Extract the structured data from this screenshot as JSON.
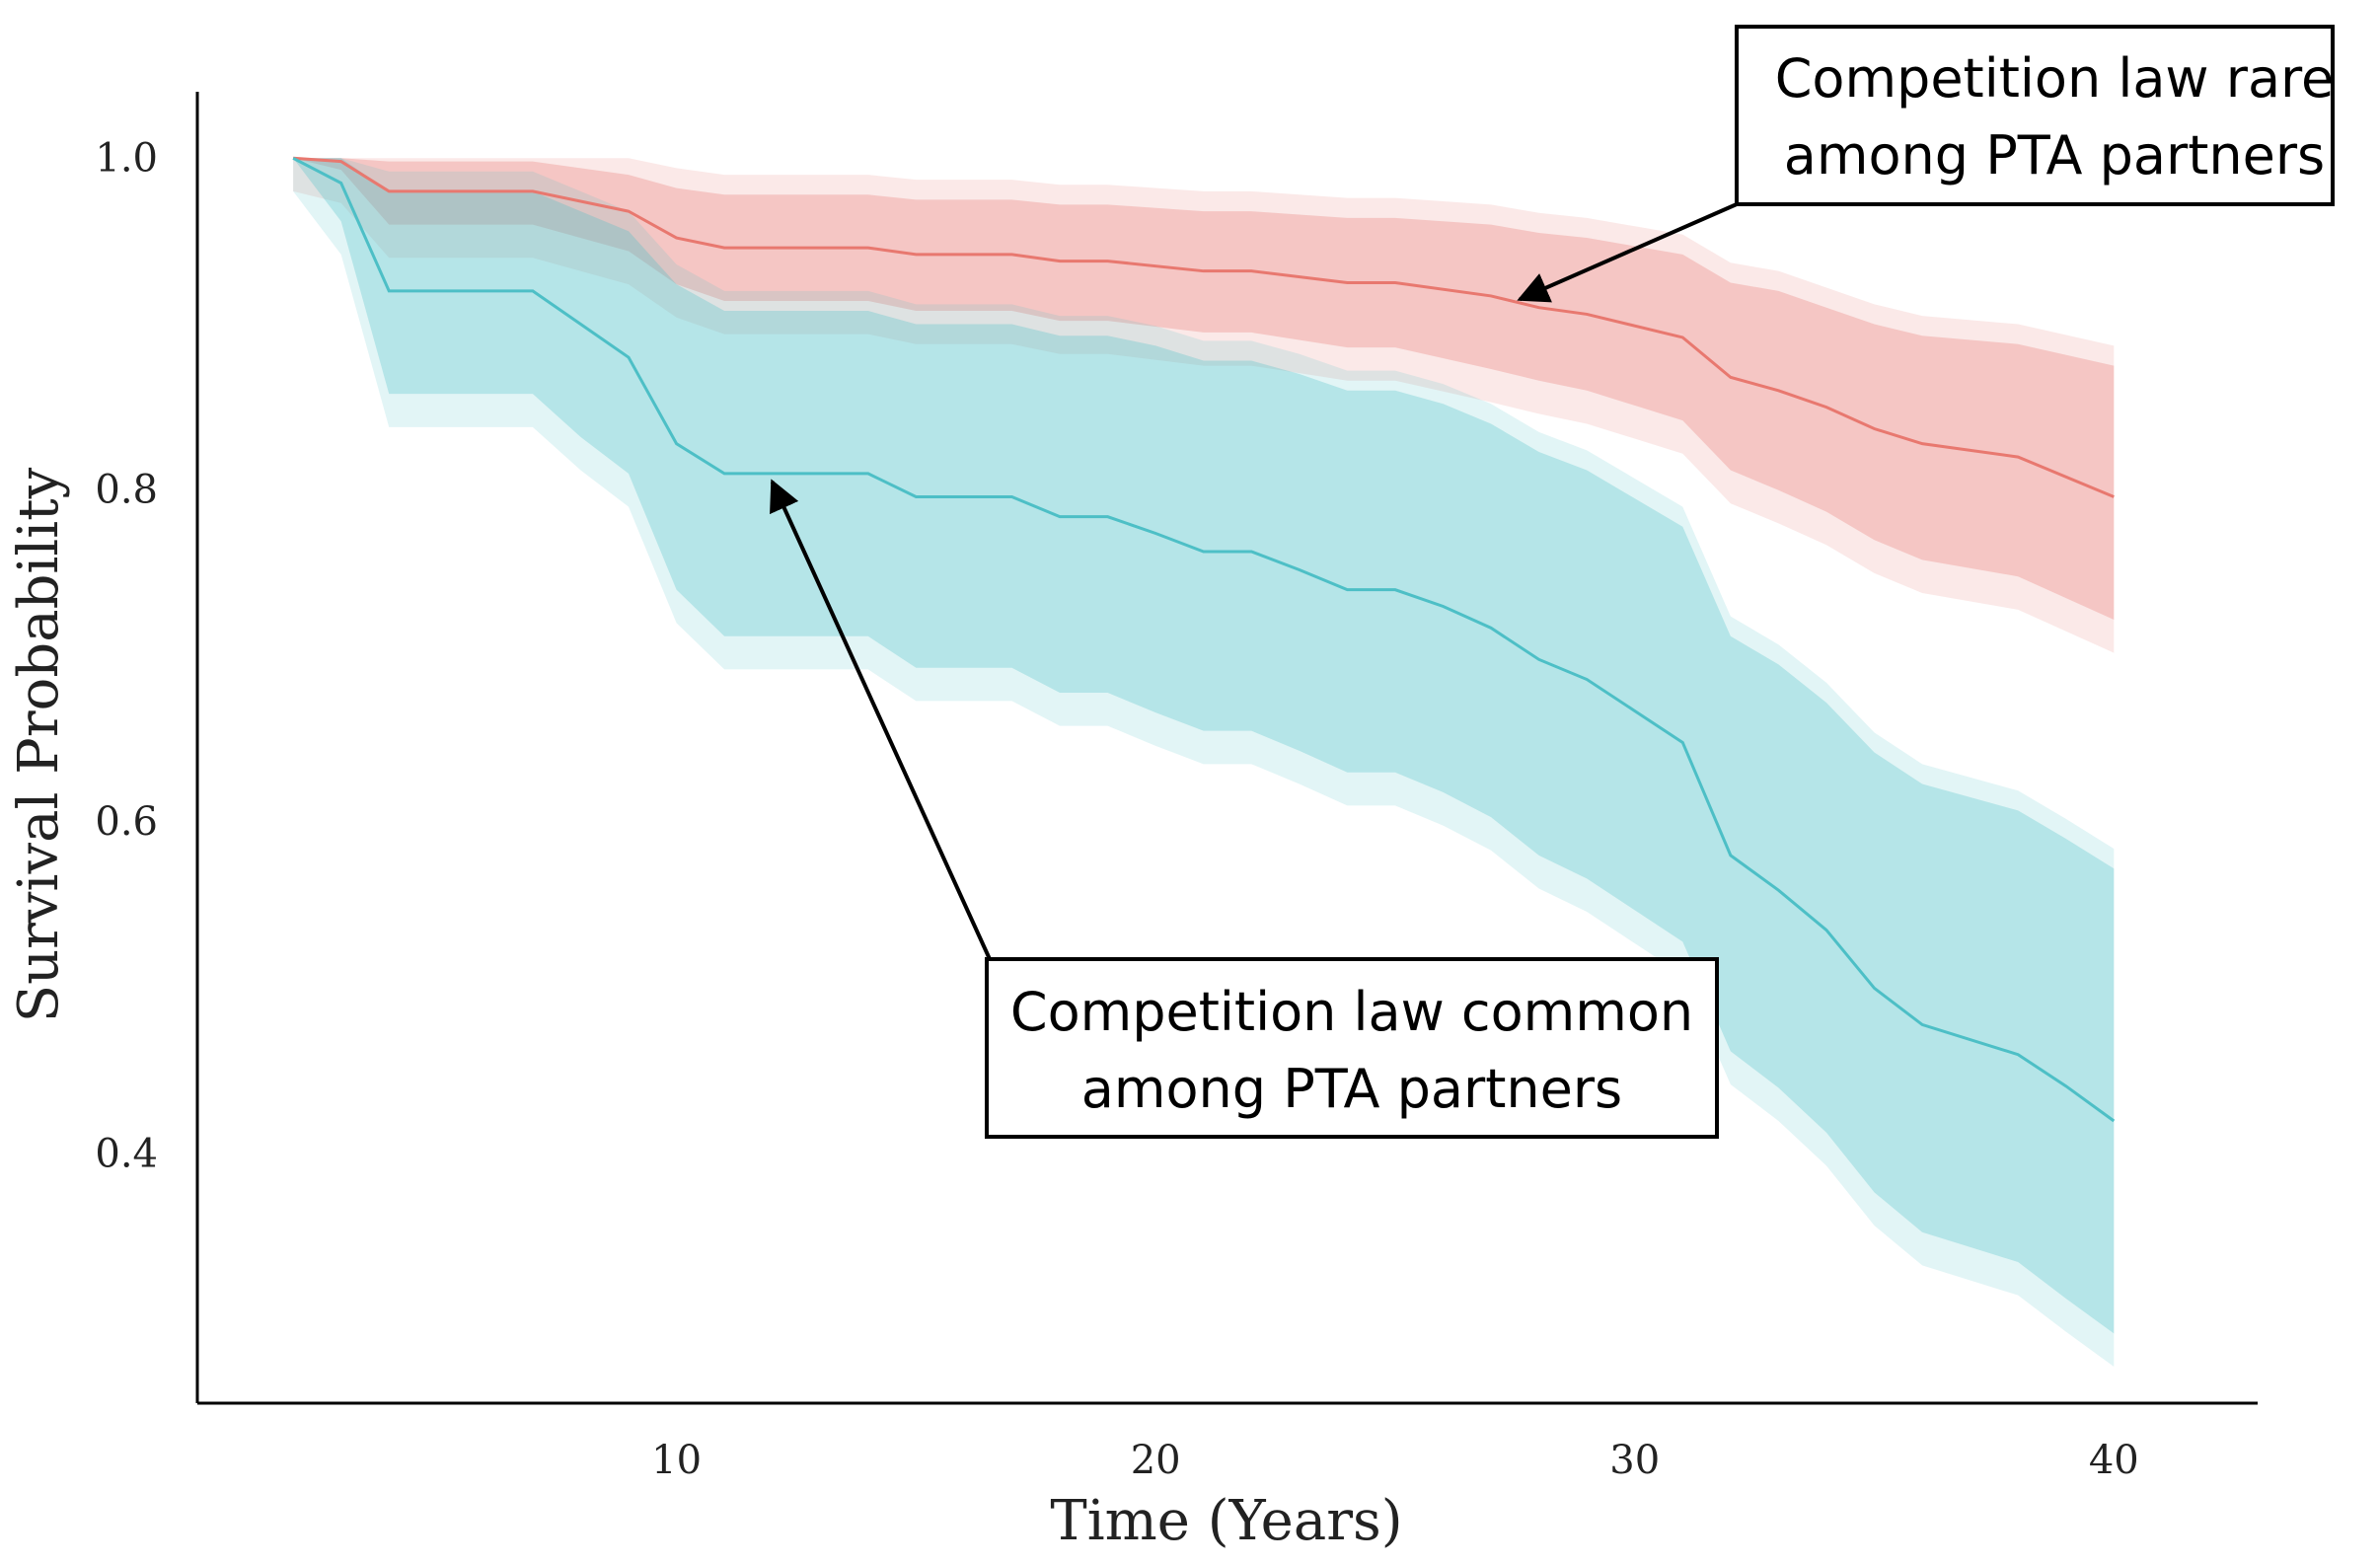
{
  "chart_data": {
    "type": "line",
    "xlabel": "Time (Years)",
    "ylabel": "Survival Probability",
    "xlim": [
      0,
      43
    ],
    "ylim": [
      0.25,
      1.04
    ],
    "xticks": [
      10,
      20,
      30,
      40
    ],
    "yticks": [
      0.4,
      0.6,
      0.8,
      1.0
    ],
    "xtick_labels": [
      "10",
      "20",
      "30",
      "40"
    ],
    "ytick_labels": [
      "0.4",
      "0.6",
      "0.8",
      "1.0"
    ],
    "grid": false,
    "colors": {
      "rare": "#E8786F",
      "common": "#4DBFC6"
    },
    "series": [
      {
        "key": "rare",
        "x": [
          2,
          3,
          4,
          7,
          9,
          10,
          11,
          14,
          15,
          17,
          18,
          19,
          21,
          22,
          24,
          25,
          27,
          28,
          29,
          31,
          32,
          33,
          34,
          35,
          36,
          38,
          40
        ],
        "y": [
          1.0,
          0.998,
          0.98,
          0.98,
          0.968,
          0.952,
          0.946,
          0.946,
          0.942,
          0.942,
          0.938,
          0.938,
          0.932,
          0.932,
          0.925,
          0.925,
          0.917,
          0.91,
          0.906,
          0.892,
          0.868,
          0.86,
          0.85,
          0.837,
          0.828,
          0.82,
          0.796
        ],
        "ci_low": [
          1.0,
          0.993,
          0.96,
          0.96,
          0.944,
          0.924,
          0.914,
          0.914,
          0.908,
          0.908,
          0.902,
          0.902,
          0.895,
          0.895,
          0.886,
          0.886,
          0.873,
          0.866,
          0.86,
          0.842,
          0.812,
          0.8,
          0.787,
          0.77,
          0.758,
          0.748,
          0.722
        ],
        "ci_high": [
          1.0,
          1.0,
          0.998,
          0.998,
          0.99,
          0.982,
          0.978,
          0.978,
          0.975,
          0.975,
          0.972,
          0.972,
          0.968,
          0.968,
          0.964,
          0.964,
          0.96,
          0.955,
          0.952,
          0.942,
          0.925,
          0.92,
          0.91,
          0.9,
          0.893,
          0.888,
          0.875
        ]
      },
      {
        "key": "common",
        "x": [
          2,
          3,
          4,
          7,
          8,
          9,
          10,
          11,
          14,
          15,
          17,
          18,
          19,
          20,
          21,
          22,
          23,
          24,
          25,
          26,
          27,
          28,
          29,
          30,
          31,
          32,
          33,
          34,
          35,
          36,
          38,
          39,
          40
        ],
        "y": [
          1.0,
          0.985,
          0.92,
          0.92,
          0.9,
          0.88,
          0.828,
          0.81,
          0.81,
          0.796,
          0.796,
          0.784,
          0.784,
          0.774,
          0.763,
          0.763,
          0.752,
          0.74,
          0.74,
          0.73,
          0.717,
          0.698,
          0.686,
          0.667,
          0.648,
          0.58,
          0.559,
          0.535,
          0.5,
          0.478,
          0.46,
          0.441,
          0.42
        ],
        "ci_low": [
          1.0,
          0.962,
          0.858,
          0.858,
          0.832,
          0.81,
          0.74,
          0.712,
          0.712,
          0.693,
          0.693,
          0.678,
          0.678,
          0.666,
          0.655,
          0.655,
          0.643,
          0.63,
          0.63,
          0.618,
          0.603,
          0.58,
          0.566,
          0.547,
          0.528,
          0.462,
          0.44,
          0.413,
          0.377,
          0.353,
          0.335,
          0.313,
          0.292
        ],
        "ci_high": [
          1.0,
          1.0,
          0.98,
          0.98,
          0.968,
          0.956,
          0.924,
          0.908,
          0.908,
          0.9,
          0.9,
          0.893,
          0.893,
          0.887,
          0.878,
          0.878,
          0.87,
          0.86,
          0.86,
          0.852,
          0.84,
          0.823,
          0.812,
          0.795,
          0.778,
          0.712,
          0.695,
          0.672,
          0.642,
          0.623,
          0.607,
          0.59,
          0.572
        ]
      }
    ],
    "annotations": [
      {
        "key": "rare",
        "lines": [
          "Competition law rare",
          "among PTA partners"
        ],
        "arrow_to": [
          27.6,
          0.915
        ]
      },
      {
        "key": "common",
        "lines": [
          "Competition law common",
          "among PTA partners"
        ],
        "arrow_to": [
          12,
          0.805
        ]
      }
    ]
  }
}
